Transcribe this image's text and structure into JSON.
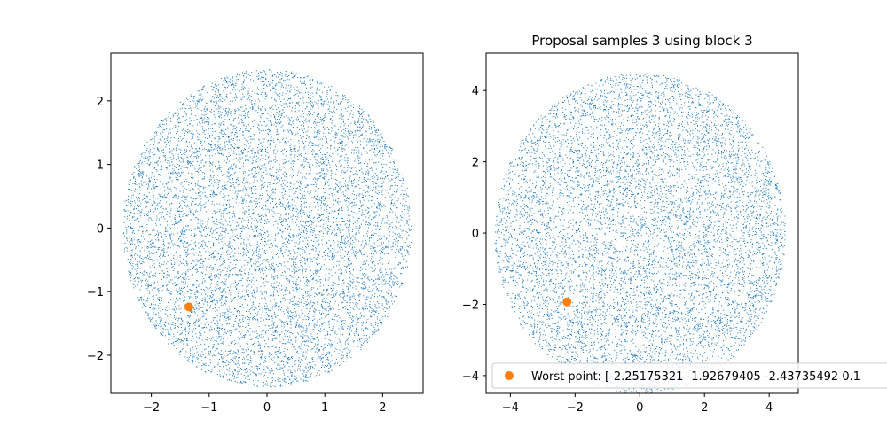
{
  "chart_data": [
    {
      "type": "scatter",
      "title": "",
      "xlabel": "",
      "ylabel": "",
      "xlim": [
        -2.7,
        2.7
      ],
      "ylim": [
        -2.6,
        2.75
      ],
      "xticks": [
        -2,
        -1,
        0,
        1,
        2
      ],
      "yticks": [
        -2,
        -1,
        0,
        1,
        2
      ],
      "xtick_labels": [
        "−2",
        "−1",
        "0",
        "1",
        "2"
      ],
      "ytick_labels": [
        "−2",
        "−1",
        "0",
        "1",
        "2"
      ],
      "grid": false,
      "series": [
        {
          "kind": "samples",
          "color": "#1f77b4",
          "distribution": "uniform disk",
          "center": [
            0,
            0
          ],
          "radius": 2.5,
          "count": 9000
        },
        {
          "kind": "highlight",
          "color": "#ff7f0e",
          "points": [
            [
              -1.35,
              -1.24
            ]
          ]
        }
      ]
    },
    {
      "type": "scatter",
      "title": "Proposal samples 3 using block 3",
      "xlabel": "",
      "ylabel": "",
      "xlim": [
        -4.75,
        4.9
      ],
      "ylim": [
        -4.5,
        5.05
      ],
      "xticks": [
        -4,
        -2,
        0,
        2,
        4
      ],
      "yticks": [
        -4,
        -2,
        0,
        2,
        4
      ],
      "xtick_labels": [
        "−4",
        "−2",
        "0",
        "2",
        "4"
      ],
      "ytick_labels": [
        "−4",
        "−2",
        "0",
        "2",
        "4"
      ],
      "grid": false,
      "legend_placement": "lower-right",
      "legend": [
        {
          "label": "Worst point: [-2.25175321 -1.92679405 -2.43735492  0.1",
          "color": "#ff7f0e",
          "marker": "circle"
        }
      ],
      "series": [
        {
          "kind": "samples",
          "color": "#1f77b4",
          "distribution": "uniform disk",
          "center": [
            0,
            0
          ],
          "radius": 4.5,
          "count": 8500
        },
        {
          "kind": "highlight",
          "name": "Worst point: [-2.25175321 -1.92679405 -2.43735492  0.1",
          "color": "#ff7f0e",
          "points": [
            [
              -2.25,
              -1.93
            ]
          ]
        }
      ]
    }
  ]
}
